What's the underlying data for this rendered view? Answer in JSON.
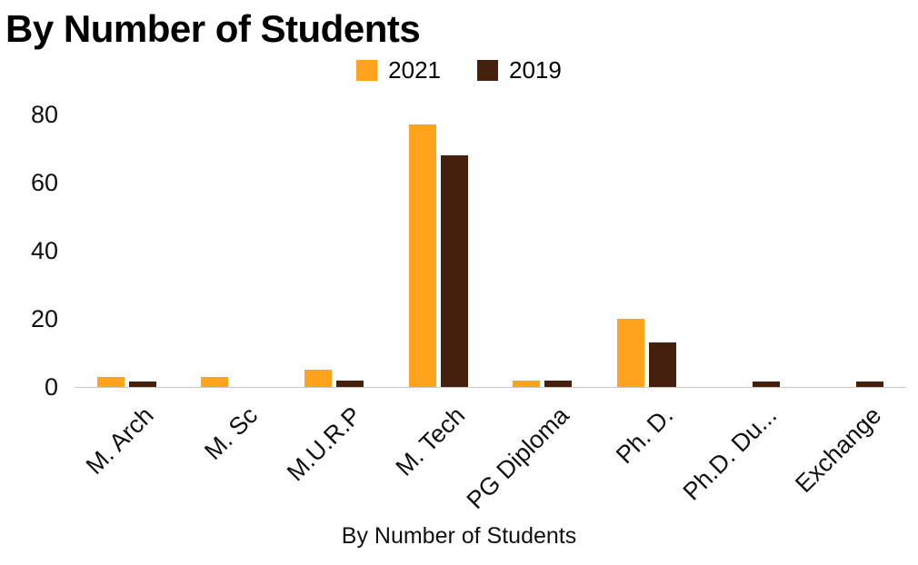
{
  "chart_data": {
    "type": "bar",
    "title": "By Number of Students",
    "xlabel": "By Number of Students",
    "ylabel": "",
    "categories": [
      "M. Arch",
      "M. Sc",
      "M.U.R.P",
      "M. Tech",
      "PG Diploma",
      "Ph. D.",
      "Ph.D. Du...",
      "Exchange"
    ],
    "series": [
      {
        "name": "2021",
        "color": "#FFA41C",
        "values": [
          3,
          3,
          5,
          77,
          2,
          20,
          0,
          0
        ]
      },
      {
        "name": "2019",
        "color": "#45200D",
        "values": [
          1.5,
          0,
          2,
          68,
          2,
          13,
          1.5,
          1.5
        ]
      }
    ],
    "y_ticks": [
      0,
      20,
      40,
      60,
      80
    ],
    "ylim": [
      0,
      80
    ],
    "legend_position": "top",
    "grid": "off"
  }
}
